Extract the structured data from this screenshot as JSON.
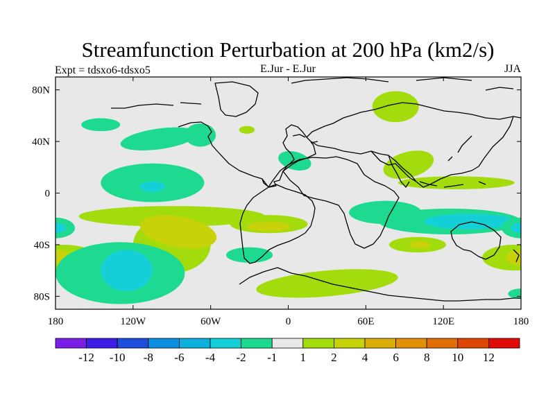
{
  "chart_data": {
    "type": "contour map",
    "title": "Streamfunction Perturbation at 200 hPa (km2/s)",
    "left_string": "Expt = tdsxo6-tdsxo5",
    "center_string": "E.Jur - E.Jur",
    "right_string": "JJA",
    "projection": "cylindrical equidistant, centered on 0 longitude",
    "x_range": [
      -180,
      180
    ],
    "y_range": [
      -90,
      90
    ],
    "x_ticks": [
      {
        "value": -180,
        "label": "180"
      },
      {
        "value": -120,
        "label": "120W"
      },
      {
        "value": -60,
        "label": "60W"
      },
      {
        "value": 0,
        "label": "0"
      },
      {
        "value": 60,
        "label": "60E"
      },
      {
        "value": 120,
        "label": "120E"
      },
      {
        "value": 180,
        "label": "180"
      }
    ],
    "y_ticks": [
      {
        "value": 80,
        "label": "80N"
      },
      {
        "value": 40,
        "label": "40N"
      },
      {
        "value": 0,
        "label": "0"
      },
      {
        "value": -40,
        "label": "40S"
      },
      {
        "value": -80,
        "label": "80S"
      }
    ],
    "background_color": "#e8e8e8",
    "colorbar": {
      "colors": [
        "#7a1ee6",
        "#3c1ee6",
        "#1e4edb",
        "#0e8ee0",
        "#0cb0dc",
        "#14cfd6",
        "#1ed990",
        "#e8e8e8",
        "#a2dc0c",
        "#c8d20a",
        "#dcae08",
        "#e29006",
        "#e06e04",
        "#de4604",
        "#e00a08"
      ],
      "labels": [
        "-12",
        "-10",
        "-8",
        "-6",
        "-4",
        "-2",
        "-1",
        "1",
        "2",
        "4",
        "6",
        "8",
        "10",
        "12"
      ]
    },
    "anomaly_regions": [
      {
        "name": "north-atlantic-high",
        "level": 1,
        "lon": [
          -30,
          0
        ],
        "lat": [
          45,
          10
        ],
        "rot": -3
      },
      {
        "name": "north-pacific-low",
        "level": -1,
        "lon": [
          -100,
          30
        ],
        "lat": [
          42,
          8
        ],
        "rot": -8
      },
      {
        "name": "tropical-pacific-low",
        "level": -1,
        "lon": [
          -105,
          40
        ],
        "lat": [
          8,
          15
        ],
        "rot": 0
      },
      {
        "name": "tropical-pacific-core",
        "level": -2,
        "lon": [
          -105,
          10
        ],
        "lat": [
          5,
          4
        ],
        "rot": 0
      },
      {
        "name": "north-america-low",
        "level": -1,
        "lon": [
          -68,
          12
        ],
        "lat": [
          45,
          9
        ],
        "rot": 0
      },
      {
        "name": "gulf-low",
        "level": -1,
        "lon": [
          5,
          13
        ],
        "lat": [
          25,
          7
        ],
        "rot": 15
      },
      {
        "name": "north-africa-high",
        "level": 1,
        "lon": [
          -32,
          6
        ],
        "lat": [
          49,
          3
        ],
        "rot": 0
      },
      {
        "name": "siberia-high",
        "level": 1,
        "lon": [
          83,
          18
        ],
        "lat": [
          67,
          12
        ],
        "rot": 0
      },
      {
        "name": "india-high",
        "level": 1,
        "lon": [
          93,
          20
        ],
        "lat": [
          22,
          10
        ],
        "rot": -15
      },
      {
        "name": "equatorial-indian-high",
        "level": 1,
        "lon": [
          130,
          45
        ],
        "lat": [
          8,
          5
        ],
        "rot": 0
      },
      {
        "name": "south-pacific-high",
        "level": 1,
        "lon": [
          -90,
          72
        ],
        "lat": [
          -18,
          8
        ],
        "rot": 0
      },
      {
        "name": "south-pacific-loop-high",
        "level": 1,
        "lon": [
          -90,
          30
        ],
        "lat": [
          -40,
          22
        ],
        "rot": 0
      },
      {
        "name": "southeast-pacific-core",
        "level": 2,
        "lon": [
          -85,
          30
        ],
        "lat": [
          -30,
          12
        ],
        "rot": 10
      },
      {
        "name": "south-atlantic-high",
        "level": 1,
        "lon": [
          -15,
          30
        ],
        "lat": [
          -24,
          7
        ],
        "rot": 0
      },
      {
        "name": "south-atlantic-core",
        "level": 2,
        "lon": [
          -15,
          17
        ],
        "lat": [
          -26,
          4
        ],
        "rot": 0
      },
      {
        "name": "southern-ocean-high",
        "level": 1,
        "lon": [
          30,
          55
        ],
        "lat": [
          -70,
          10
        ],
        "rot": -5
      },
      {
        "name": "south-indian-low",
        "level": -1,
        "lon": [
          125,
          55
        ],
        "lat": [
          -22,
          10
        ],
        "rot": 0
      },
      {
        "name": "west-indian-low",
        "level": -1,
        "lon": [
          75,
          28
        ],
        "lat": [
          -15,
          9
        ],
        "rot": 0
      },
      {
        "name": "south-indian-core",
        "level": -2,
        "lon": [
          140,
          35
        ],
        "lat": [
          -22,
          6
        ],
        "rot": 0
      },
      {
        "name": "australia-high",
        "level": 1,
        "lon": [
          100,
          22
        ],
        "lat": [
          -40,
          6
        ],
        "rot": 0
      },
      {
        "name": "australia-core",
        "level": 2,
        "lon": [
          102,
          8
        ],
        "lat": [
          -40,
          3
        ],
        "rot": 0
      },
      {
        "name": "dateline-west-high",
        "level": 1,
        "lon": [
          -175,
          28
        ],
        "lat": [
          -50,
          10
        ],
        "rot": 0
      },
      {
        "name": "dateline-west-core",
        "level": 2,
        "lon": [
          -180,
          12
        ],
        "lat": [
          -50,
          6
        ],
        "rot": 0
      },
      {
        "name": "dateline-east-high",
        "level": 1,
        "lon": [
          175,
          25
        ],
        "lat": [
          -50,
          10
        ],
        "rot": 0
      },
      {
        "name": "dateline-east-core",
        "level": 2,
        "lon": [
          180,
          12
        ],
        "lat": [
          -50,
          6
        ],
        "rot": 0
      },
      {
        "name": "southwest-pacific-low",
        "level": -1,
        "lon": [
          -130,
          50
        ],
        "lat": [
          -62,
          24
        ],
        "rot": 0
      },
      {
        "name": "southwest-pacific-core",
        "level": -2,
        "lon": [
          -125,
          20
        ],
        "lat": [
          -60,
          16
        ],
        "rot": 0
      },
      {
        "name": "west-tropical-pacific-low",
        "level": -1,
        "lon": [
          -180,
          15
        ],
        "lat": [
          -27,
          8
        ],
        "rot": 0
      },
      {
        "name": "west-tropical-pacific-core",
        "level": -2,
        "lon": [
          -180,
          8
        ],
        "lat": [
          -27,
          4
        ],
        "rot": 0
      },
      {
        "name": "east-tropical-pacific-low",
        "level": -1,
        "lon": [
          180,
          15
        ],
        "lat": [
          -27,
          8
        ],
        "rot": 0
      },
      {
        "name": "east-tropical-pacific-core",
        "level": -2,
        "lon": [
          180,
          8
        ],
        "lat": [
          -27,
          4
        ],
        "rot": 0
      },
      {
        "name": "south-america-south-low",
        "level": -1,
        "lon": [
          -30,
          18
        ],
        "lat": [
          -48,
          6
        ],
        "rot": 0
      },
      {
        "name": "northwest-pacific-low",
        "level": -1,
        "lon": [
          -145,
          15
        ],
        "lat": [
          53,
          5
        ],
        "rot": 0
      },
      {
        "name": "far-south-pacific-low",
        "level": -1,
        "lon": [
          180,
          10
        ],
        "lat": [
          -78,
          4
        ],
        "rot": 0
      }
    ]
  }
}
